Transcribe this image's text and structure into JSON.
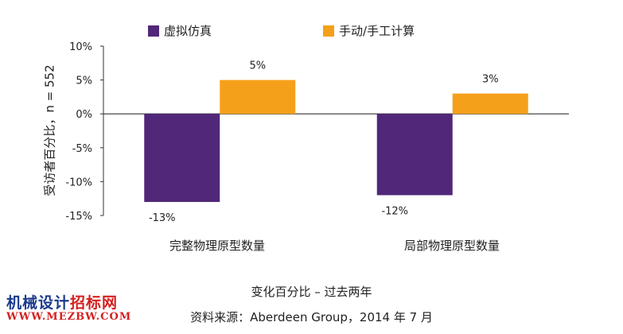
{
  "chart_data": {
    "type": "bar",
    "categories": [
      "完整物理原型数量",
      "局部物理原型数量"
    ],
    "series": [
      {
        "name": "虚拟仿真",
        "color": "#512779",
        "values": [
          -13,
          -12
        ],
        "labels": [
          "-13%",
          "-12%"
        ]
      },
      {
        "name": "手动/手工计算",
        "color": "#f5a01a",
        "values": [
          5,
          3
        ],
        "labels": [
          "5%",
          "3%"
        ]
      }
    ],
    "ylim": [
      -15,
      10
    ],
    "yticks": [
      10,
      5,
      0,
      -5,
      -10,
      -15
    ],
    "ytick_labels": [
      "10%",
      "5%",
      "0%",
      "-5%",
      "-10%",
      "-15%"
    ],
    "ylabel": "受访者百分比，n = 552",
    "xlabel": "变化百分比 – 过去两年",
    "source": "资料来源：Aberdeen Group，2014 年 7 月",
    "legend_position": "top"
  },
  "watermark": {
    "line1_a": "机械设计",
    "line1_b": "招标网",
    "line2": "WWW.MEZBW.COM"
  }
}
